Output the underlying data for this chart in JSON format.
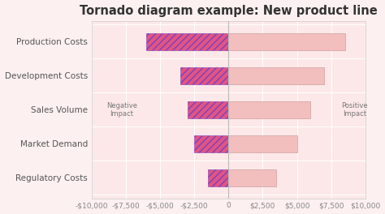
{
  "title": "Tornado diagram example: New product line",
  "categories": [
    "Production Costs",
    "Development Costs",
    "Sales Volume",
    "Market Demand",
    "Regulatory Costs"
  ],
  "negative_values": [
    -6000,
    -3500,
    -3000,
    -2500,
    -1500
  ],
  "positive_values": [
    8500,
    7000,
    6000,
    5000,
    3500
  ],
  "neg_color": "#e05585",
  "neg_hatch_color": "#8040b8",
  "pos_color": "#f2bebe",
  "pos_edge_color": "#d0a0a0",
  "background_color": "#fdf0f0",
  "plot_bg_color": "#fce8e8",
  "grid_color": "#e0d0d0",
  "title_fontsize": 10.5,
  "label_fontsize": 7.5,
  "tick_fontsize": 6.5,
  "xlim": [
    -10000,
    10000
  ],
  "xticks": [
    -10000,
    -7500,
    -5000,
    -2500,
    0,
    2500,
    5000,
    7500,
    10000
  ],
  "xtick_labels": [
    "-$10,000",
    "-$7,500",
    "-$5,000",
    "-$2,500",
    "0",
    "$2,500",
    "$5,000",
    "$7,500",
    "$10,000"
  ],
  "neg_label": "Negative\nImpact",
  "pos_label": "Positive\nImpact",
  "bar_height": 0.5
}
